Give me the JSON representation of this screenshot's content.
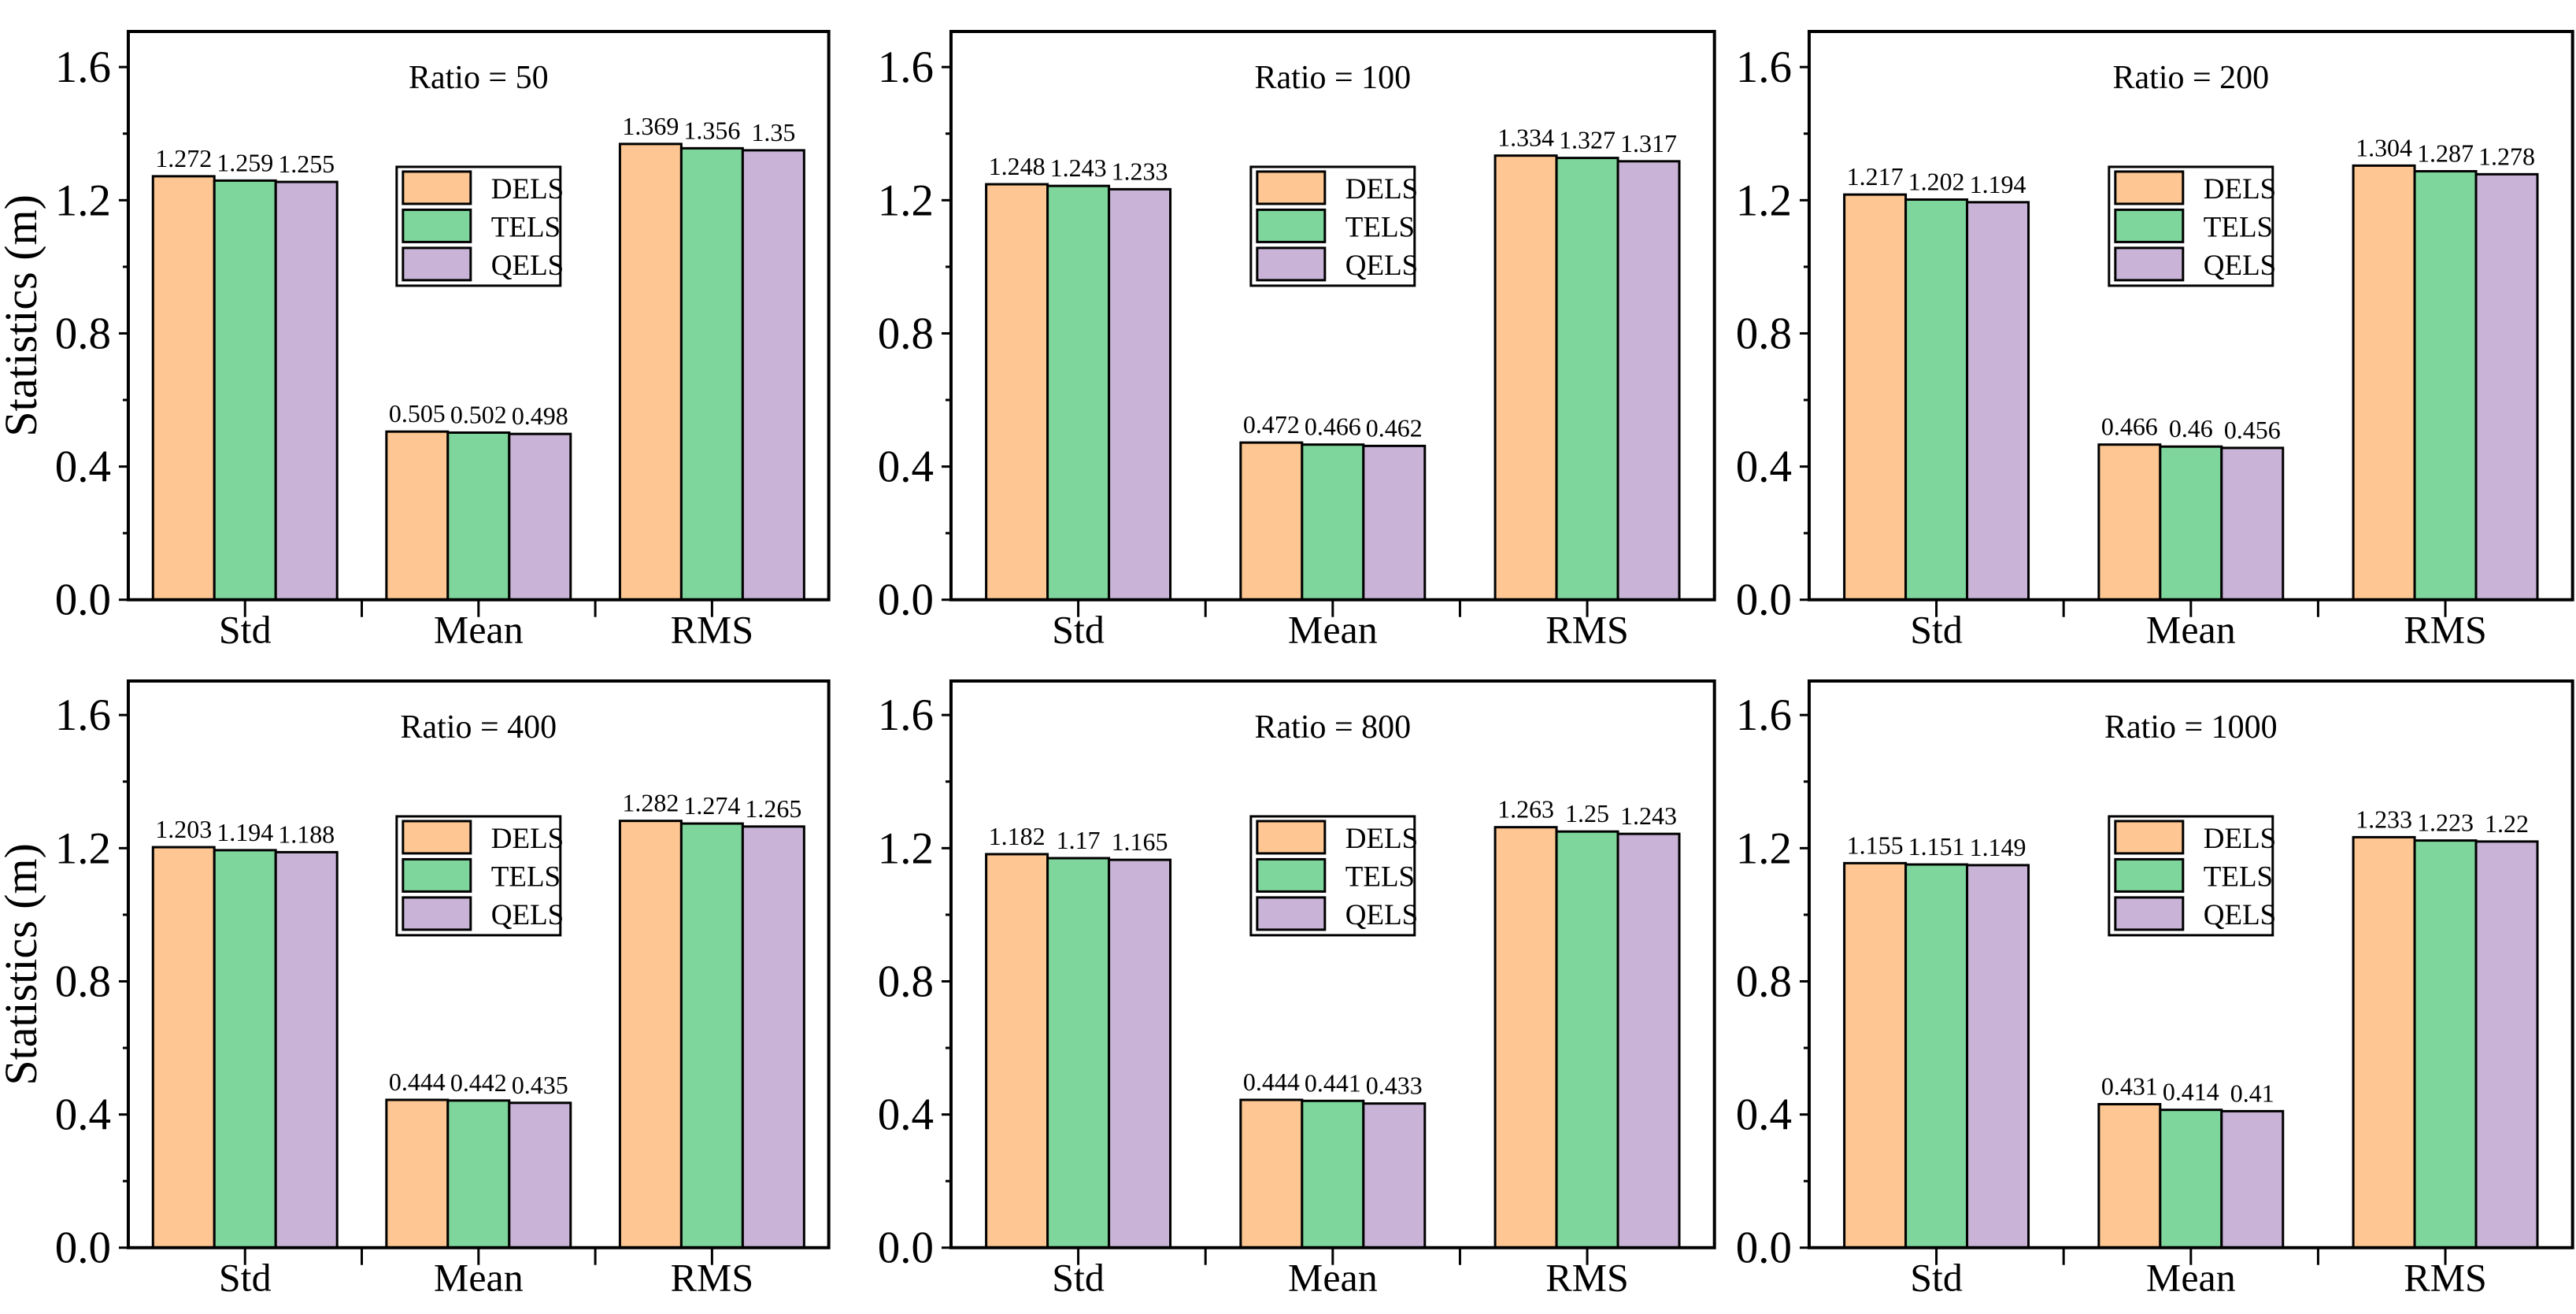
{
  "figure": {
    "ylabel": "Statistics (m)",
    "categories": [
      "Std",
      "Mean",
      "RMS"
    ],
    "series_names": [
      "DELS",
      "TELS",
      "QELS"
    ],
    "series_colors": [
      "#FDC692",
      "#7ED69C",
      "#C9B4D8"
    ],
    "edge_color": "#000000",
    "text_color": "#000000",
    "background_color": "#ffffff",
    "ytick_labels": [
      "0.0",
      "0.4",
      "0.8",
      "1.2",
      "1.6"
    ]
  },
  "chart_data": [
    {
      "type": "bar",
      "title": "Ratio = 50",
      "categories": [
        "Std",
        "Mean",
        "RMS"
      ],
      "series": [
        {
          "name": "DELS",
          "values": [
            1.272,
            0.505,
            1.369
          ]
        },
        {
          "name": "TELS",
          "values": [
            1.259,
            0.502,
            1.356
          ]
        },
        {
          "name": "QELS",
          "values": [
            1.255,
            0.498,
            1.35
          ]
        }
      ],
      "xlabel": "",
      "ylabel": "Statistics (m)",
      "ylim": [
        0,
        1.7
      ],
      "yticks": [
        0,
        0.4,
        0.8,
        1.2,
        1.6
      ],
      "minor_yticks": [
        0.2,
        0.6,
        1.0,
        1.4
      ],
      "grid": false,
      "legend_entries": [
        "DELS",
        "TELS",
        "QELS"
      ],
      "legend_position": "upper-center-boxed",
      "value_labels_shown": true
    },
    {
      "type": "bar",
      "title": "Ratio = 100",
      "categories": [
        "Std",
        "Mean",
        "RMS"
      ],
      "series": [
        {
          "name": "DELS",
          "values": [
            1.248,
            0.472,
            1.334
          ]
        },
        {
          "name": "TELS",
          "values": [
            1.243,
            0.466,
            1.327
          ]
        },
        {
          "name": "QELS",
          "values": [
            1.233,
            0.462,
            1.317
          ]
        }
      ],
      "xlabel": "",
      "ylabel": "",
      "ylim": [
        0,
        1.7
      ],
      "yticks": [
        0,
        0.4,
        0.8,
        1.2,
        1.6
      ],
      "minor_yticks": [
        0.2,
        0.6,
        1.0,
        1.4
      ],
      "grid": false,
      "legend_entries": [
        "DELS",
        "TELS",
        "QELS"
      ],
      "legend_position": "upper-center-boxed",
      "value_labels_shown": true
    },
    {
      "type": "bar",
      "title": "Ratio = 200",
      "categories": [
        "Std",
        "Mean",
        "RMS"
      ],
      "series": [
        {
          "name": "DELS",
          "values": [
            1.217,
            0.466,
            1.304
          ]
        },
        {
          "name": "TELS",
          "values": [
            1.202,
            0.46,
            1.287
          ]
        },
        {
          "name": "QELS",
          "values": [
            1.194,
            0.456,
            1.278
          ]
        }
      ],
      "xlabel": "",
      "ylabel": "",
      "ylim": [
        0,
        1.7
      ],
      "yticks": [
        0,
        0.4,
        0.8,
        1.2,
        1.6
      ],
      "minor_yticks": [
        0.2,
        0.6,
        1.0,
        1.4
      ],
      "grid": false,
      "legend_entries": [
        "DELS",
        "TELS",
        "QELS"
      ],
      "legend_position": "upper-center-boxed",
      "value_labels_shown": true
    },
    {
      "type": "bar",
      "title": "Ratio = 400",
      "categories": [
        "Std",
        "Mean",
        "RMS"
      ],
      "series": [
        {
          "name": "DELS",
          "values": [
            1.203,
            0.444,
            1.282
          ]
        },
        {
          "name": "TELS",
          "values": [
            1.194,
            0.442,
            1.274
          ]
        },
        {
          "name": "QELS",
          "values": [
            1.188,
            0.435,
            1.265
          ]
        }
      ],
      "xlabel": "",
      "ylabel": "Statistics (m)",
      "ylim": [
        0,
        1.7
      ],
      "yticks": [
        0,
        0.4,
        0.8,
        1.2,
        1.6
      ],
      "minor_yticks": [
        0.2,
        0.6,
        1.0,
        1.4
      ],
      "grid": false,
      "legend_entries": [
        "DELS",
        "TELS",
        "QELS"
      ],
      "legend_position": "upper-center-boxed",
      "value_labels_shown": true
    },
    {
      "type": "bar",
      "title": "Ratio = 800",
      "categories": [
        "Std",
        "Mean",
        "RMS"
      ],
      "series": [
        {
          "name": "DELS",
          "values": [
            1.182,
            0.444,
            1.263
          ]
        },
        {
          "name": "TELS",
          "values": [
            1.17,
            0.441,
            1.25
          ]
        },
        {
          "name": "QELS",
          "values": [
            1.165,
            0.433,
            1.243
          ]
        }
      ],
      "xlabel": "",
      "ylabel": "",
      "ylim": [
        0,
        1.7
      ],
      "yticks": [
        0,
        0.4,
        0.8,
        1.2,
        1.6
      ],
      "minor_yticks": [
        0.2,
        0.6,
        1.0,
        1.4
      ],
      "grid": false,
      "legend_entries": [
        "DELS",
        "TELS",
        "QELS"
      ],
      "legend_position": "upper-center-boxed",
      "value_labels_shown": true
    },
    {
      "type": "bar",
      "title": "Ratio = 1000",
      "categories": [
        "Std",
        "Mean",
        "RMS"
      ],
      "series": [
        {
          "name": "DELS",
          "values": [
            1.155,
            0.431,
            1.233
          ]
        },
        {
          "name": "TELS",
          "values": [
            1.151,
            0.414,
            1.223
          ]
        },
        {
          "name": "QELS",
          "values": [
            1.149,
            0.41,
            1.22
          ]
        }
      ],
      "xlabel": "",
      "ylabel": "",
      "ylim": [
        0,
        1.7
      ],
      "yticks": [
        0,
        0.4,
        0.8,
        1.2,
        1.6
      ],
      "minor_yticks": [
        0.2,
        0.6,
        1.0,
        1.4
      ],
      "grid": false,
      "legend_entries": [
        "DELS",
        "TELS",
        "QELS"
      ],
      "legend_position": "upper-center-boxed",
      "value_labels_shown": true
    }
  ]
}
